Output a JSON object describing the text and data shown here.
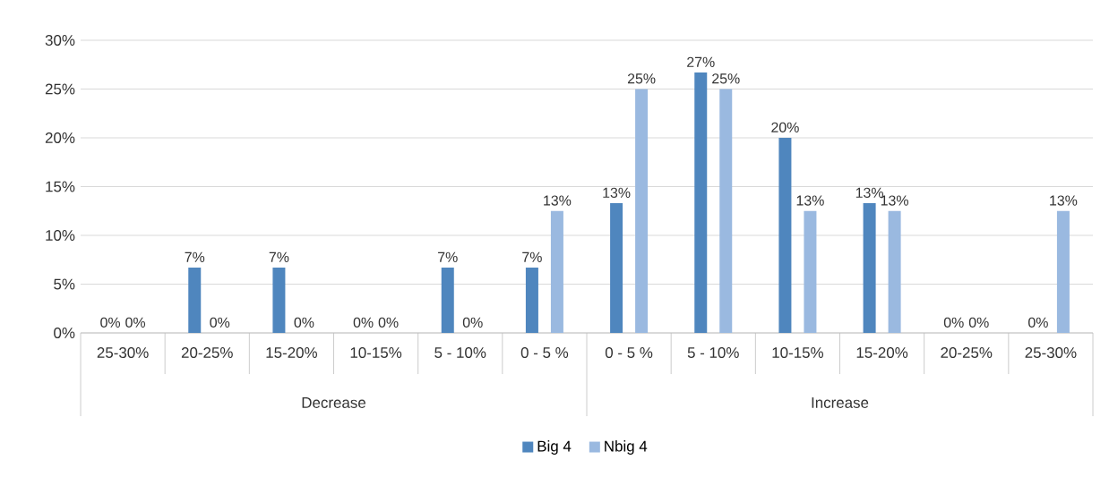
{
  "chart_data": {
    "type": "bar",
    "categories": [
      "25-30%",
      "20-25%",
      "15-20%",
      "10-15%",
      "5 - 10%",
      "0 - 5 %",
      "0 - 5 %",
      "5 - 10%",
      "10-15%",
      "15-20%",
      "20-25%",
      "25-30%"
    ],
    "annotations": [
      "Decrease",
      "Increase"
    ],
    "series": [
      {
        "name": "Big 4",
        "color": "#4f86be",
        "values": [
          0,
          6.7,
          6.7,
          0,
          6.7,
          6.7,
          13.3,
          26.7,
          20,
          13.3,
          0,
          0
        ],
        "value_labels": [
          "0%",
          "7%",
          "7%",
          "0%",
          "7%",
          "7%",
          "13%",
          "27%",
          "20%",
          "13%",
          "0%",
          "0%"
        ]
      },
      {
        "name": "Nbig 4",
        "color": "#9ab9e0",
        "values": [
          0,
          0,
          0,
          0,
          0,
          12.5,
          25,
          25,
          12.5,
          12.5,
          0,
          12.5
        ],
        "value_labels": [
          "0%",
          "0%",
          "0%",
          "0%",
          "0%",
          "13%",
          "25%",
          "25%",
          "13%",
          "13%",
          "0%",
          "13%"
        ]
      }
    ],
    "ylim": [
      0,
      30
    ],
    "yticks": [
      {
        "value": 0,
        "label": "0%"
      },
      {
        "value": 5,
        "label": "5%"
      },
      {
        "value": 10,
        "label": "10%"
      },
      {
        "value": 15,
        "label": "15%"
      },
      {
        "value": 20,
        "label": "20%"
      },
      {
        "value": 25,
        "label": "25%"
      },
      {
        "value": 30,
        "label": "30%"
      }
    ],
    "grid": "y",
    "legend": "bottom"
  }
}
